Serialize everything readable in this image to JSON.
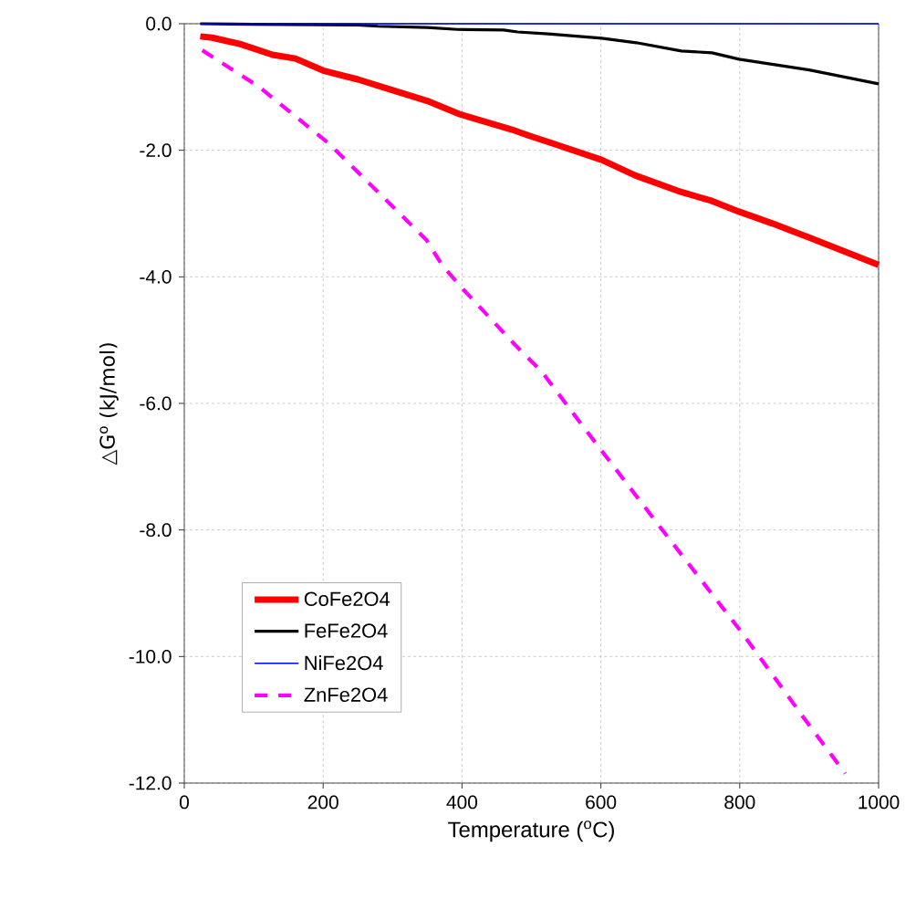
{
  "chart_data": {
    "type": "line",
    "xlabel": "Temperature ($^{o}$C)",
    "ylabel": "△G$^{o}$ (kJ/mol)",
    "xlim": [
      0,
      1000
    ],
    "xticks": [
      0,
      200,
      400,
      600,
      800,
      1000
    ],
    "ylim": [
      -12,
      0
    ],
    "yticks": [
      {
        "value": 0,
        "label": "0.0"
      },
      {
        "value": -2,
        "label": "-2.0"
      },
      {
        "value": -4,
        "label": "-4.0"
      },
      {
        "value": -6,
        "label": "-6.0"
      },
      {
        "value": -8,
        "label": "-8.0"
      },
      {
        "value": -10,
        "label": "-10.0"
      },
      {
        "value": -12,
        "label": "-12.0"
      }
    ],
    "grid": true,
    "legend": "bottom left",
    "marker": "none",
    "series": [
      {
        "name": "CoFe2O4",
        "color": "#ff0000",
        "line_style": "solid",
        "x": [
          23,
          40,
          80,
          127,
          160,
          200,
          250,
          297,
          350,
          397,
          471,
          497,
          533,
          601,
          650,
          716,
          760,
          799,
          848,
          900,
          1000
        ],
        "values": [
          -0.2,
          -0.22,
          -0.32,
          -0.49,
          -0.55,
          -0.74,
          -0.88,
          -1.04,
          -1.22,
          -1.43,
          -1.67,
          -1.77,
          -1.9,
          -2.15,
          -2.4,
          -2.66,
          -2.8,
          -2.97,
          -3.16,
          -3.38,
          -3.81
        ]
      },
      {
        "name": "FeFe2O4",
        "color": "#000000",
        "line_style": "solid",
        "x": [
          23,
          100,
          250,
          279,
          350,
          393,
          460,
          480,
          524,
          601,
          651,
          716,
          760,
          799,
          900,
          1000
        ],
        "values": [
          0,
          -0.01,
          -0.02,
          -0.04,
          -0.06,
          -0.09,
          -0.1,
          -0.13,
          -0.16,
          -0.23,
          -0.3,
          -0.43,
          -0.46,
          -0.56,
          -0.73,
          -0.95
        ]
      },
      {
        "name": "NiFe2O4",
        "color": "#0000ff",
        "line_style": "solid",
        "x": [
          23,
          1000
        ],
        "values": [
          0,
          0
        ]
      },
      {
        "name": "ZnFe2O4",
        "color": "#ff00ff",
        "line_style": "dashed",
        "x": [
          26,
          108,
          209,
          349,
          371,
          402,
          476,
          515,
          572,
          685,
          803,
          891,
          952
        ],
        "values": [
          -0.42,
          -1.0,
          -1.9,
          -3.42,
          -3.81,
          -4.2,
          -5.07,
          -5.5,
          -6.33,
          -7.95,
          -9.62,
          -10.95,
          -11.85
        ]
      }
    ]
  }
}
